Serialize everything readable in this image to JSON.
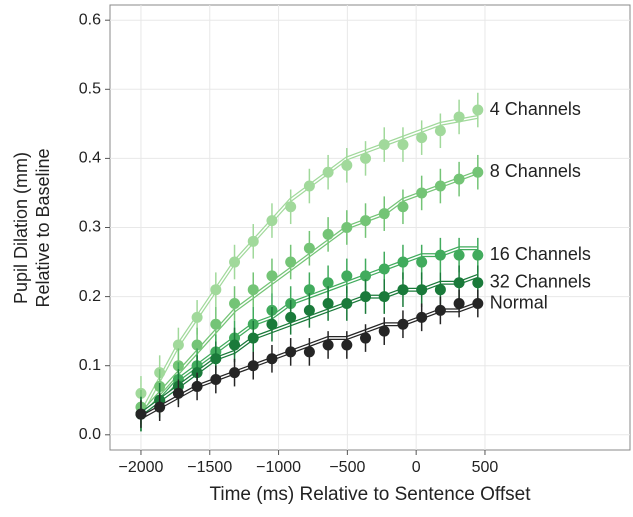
{
  "chart_data": {
    "type": "line",
    "xlabel": "Time (ms) Relative to Sentence Offset",
    "ylabel": [
      "Pupil Dilation (mm)",
      "Relative to Baseline"
    ],
    "x": [
      -2000,
      -1864,
      -1728,
      -1592,
      -1456,
      -1320,
      -1184,
      -1048,
      -912,
      -776,
      -640,
      -504,
      -368,
      -232,
      -96,
      40,
      176,
      312,
      448
    ],
    "series": [
      {
        "name": "4 Channels",
        "color": "#a1d99b",
        "error": 0.025,
        "values": [
          0.06,
          0.09,
          0.13,
          0.17,
          0.21,
          0.25,
          0.28,
          0.31,
          0.33,
          0.36,
          0.38,
          0.39,
          0.4,
          0.42,
          0.42,
          0.43,
          0.44,
          0.46,
          0.47
        ],
        "fit": [
          0.03,
          0.08,
          0.13,
          0.17,
          0.21,
          0.25,
          0.28,
          0.31,
          0.34,
          0.36,
          0.38,
          0.4,
          0.41,
          0.42,
          0.43,
          0.44,
          0.45,
          0.455,
          0.46
        ]
      },
      {
        "name": "8 Channels",
        "color": "#74c476",
        "error": 0.025,
        "values": [
          0.04,
          0.07,
          0.1,
          0.13,
          0.16,
          0.19,
          0.21,
          0.23,
          0.25,
          0.27,
          0.29,
          0.3,
          0.31,
          0.32,
          0.33,
          0.35,
          0.36,
          0.37,
          0.38
        ],
        "fit": [
          0.03,
          0.06,
          0.09,
          0.12,
          0.15,
          0.18,
          0.2,
          0.22,
          0.24,
          0.26,
          0.28,
          0.3,
          0.31,
          0.32,
          0.34,
          0.35,
          0.36,
          0.37,
          0.38
        ]
      },
      {
        "name": "16 Channels",
        "color": "#41ab5d",
        "error": 0.025,
        "values": [
          0.03,
          0.05,
          0.08,
          0.1,
          0.12,
          0.14,
          0.16,
          0.18,
          0.19,
          0.21,
          0.22,
          0.23,
          0.23,
          0.24,
          0.25,
          0.25,
          0.26,
          0.26,
          0.26
        ],
        "fit": [
          0.03,
          0.05,
          0.08,
          0.1,
          0.12,
          0.14,
          0.16,
          0.17,
          0.19,
          0.2,
          0.21,
          0.22,
          0.23,
          0.24,
          0.25,
          0.26,
          0.26,
          0.27,
          0.27
        ]
      },
      {
        "name": "32 Channels",
        "color": "#1a7a3a",
        "error": 0.025,
        "values": [
          0.03,
          0.05,
          0.07,
          0.09,
          0.11,
          0.13,
          0.14,
          0.16,
          0.17,
          0.18,
          0.19,
          0.19,
          0.2,
          0.2,
          0.21,
          0.21,
          0.21,
          0.22,
          0.22
        ],
        "fit": [
          0.03,
          0.05,
          0.07,
          0.09,
          0.11,
          0.12,
          0.14,
          0.15,
          0.16,
          0.17,
          0.18,
          0.19,
          0.2,
          0.2,
          0.21,
          0.21,
          0.22,
          0.22,
          0.23
        ]
      },
      {
        "name": "Normal",
        "color": "#252525",
        "error": 0.02,
        "values": [
          0.03,
          0.04,
          0.06,
          0.07,
          0.08,
          0.09,
          0.1,
          0.11,
          0.12,
          0.12,
          0.13,
          0.13,
          0.14,
          0.15,
          0.16,
          0.17,
          0.18,
          0.19,
          0.19
        ],
        "fit": [
          0.025,
          0.04,
          0.055,
          0.07,
          0.08,
          0.09,
          0.1,
          0.11,
          0.12,
          0.13,
          0.14,
          0.14,
          0.15,
          0.16,
          0.16,
          0.17,
          0.18,
          0.18,
          0.19
        ]
      }
    ],
    "xlim": [
      -2225,
      1554
    ],
    "xticks": [
      {
        "value": -2000,
        "label": "−2000"
      },
      {
        "value": -1500,
        "label": "−1500"
      },
      {
        "value": -1000,
        "label": "−1000"
      },
      {
        "value": -500,
        "label": "−500"
      },
      0,
      500
    ],
    "ylim": [
      -0.022,
      0.622
    ],
    "yticks": [
      {
        "value": 0,
        "label": "0.0"
      },
      0.1,
      0.2,
      0.3,
      0.4,
      0.5,
      0.6
    ],
    "grid": true
  }
}
